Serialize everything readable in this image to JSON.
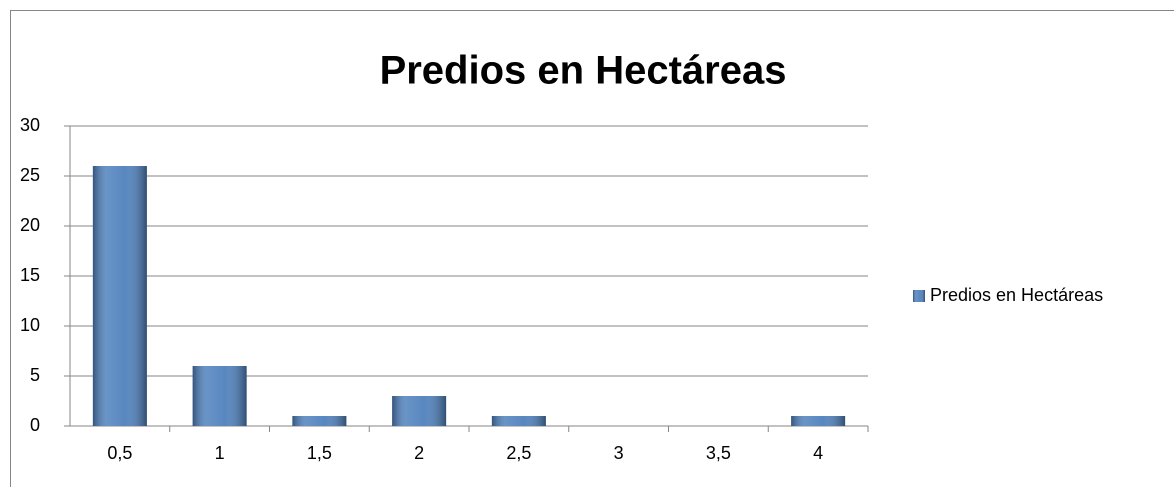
{
  "chart_data": {
    "type": "bar",
    "title": "Predios en Hectáreas",
    "categories": [
      "0,5",
      "1",
      "1,5",
      "2",
      "2,5",
      "3",
      "3,5",
      "4"
    ],
    "series": [
      {
        "name": "Predios en Hectáreas",
        "color": "#4f81bd",
        "values": [
          26,
          6,
          1,
          3,
          1,
          0,
          0,
          1
        ]
      }
    ],
    "ylim": [
      0,
      30
    ],
    "yticks": [
      0,
      5,
      10,
      15,
      20,
      25,
      30
    ],
    "grid": true,
    "legend": "right"
  }
}
